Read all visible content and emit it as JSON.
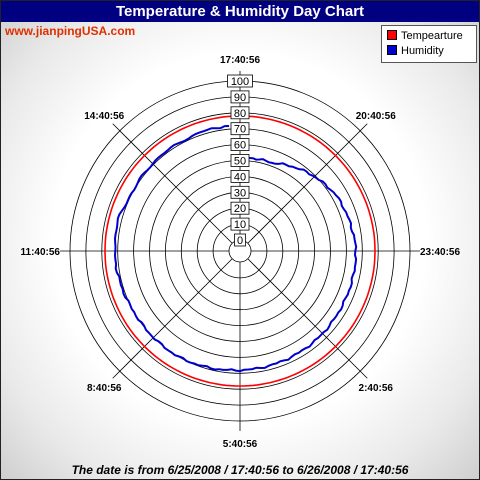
{
  "chart_data": {
    "type": "polar-line",
    "title": "Temperature & Humidity Day Chart",
    "site": "www.jianpingUSA.com",
    "footer": "The date is from 6/25/2008 / 17:40:56 to 6/26/2008 / 17:40:56",
    "radial_ticks": [
      "0",
      "10",
      "20",
      "30",
      "40",
      "50",
      "60",
      "70",
      "80",
      "90",
      "100"
    ],
    "radial_range": [
      0,
      100
    ],
    "time_labels": [
      "17:40:56",
      "20:40:56",
      "23:40:56",
      "2:40:56",
      "5:40:56",
      "8:40:56",
      "11:40:56",
      "14:40:56"
    ],
    "grid": true,
    "legend_position": "top-right",
    "series": [
      {
        "name": "Tempearture",
        "color": "#ff0000",
        "angle_deg": [
          0,
          15,
          30,
          45,
          60,
          75,
          90,
          105,
          120,
          135,
          150,
          165,
          180,
          195,
          210,
          225,
          240,
          255,
          270,
          285,
          300,
          315,
          330,
          345,
          360
        ],
        "values": [
          78,
          78,
          78,
          78,
          78,
          78,
          78,
          78,
          78,
          78,
          78,
          78,
          78,
          78,
          78,
          78,
          78,
          78,
          78,
          78,
          78,
          78,
          78,
          78,
          78
        ]
      },
      {
        "name": "Humidity",
        "color": "#0000cc",
        "angle_deg": [
          0,
          20,
          40,
          60,
          90,
          120,
          150,
          180,
          210,
          240,
          270,
          285,
          300,
          315,
          330,
          345,
          355
        ],
        "values": [
          52,
          52,
          58,
          63,
          66,
          66,
          67,
          68,
          70,
          70,
          72,
          72,
          70,
          71,
          71,
          72,
          72
        ]
      }
    ]
  }
}
